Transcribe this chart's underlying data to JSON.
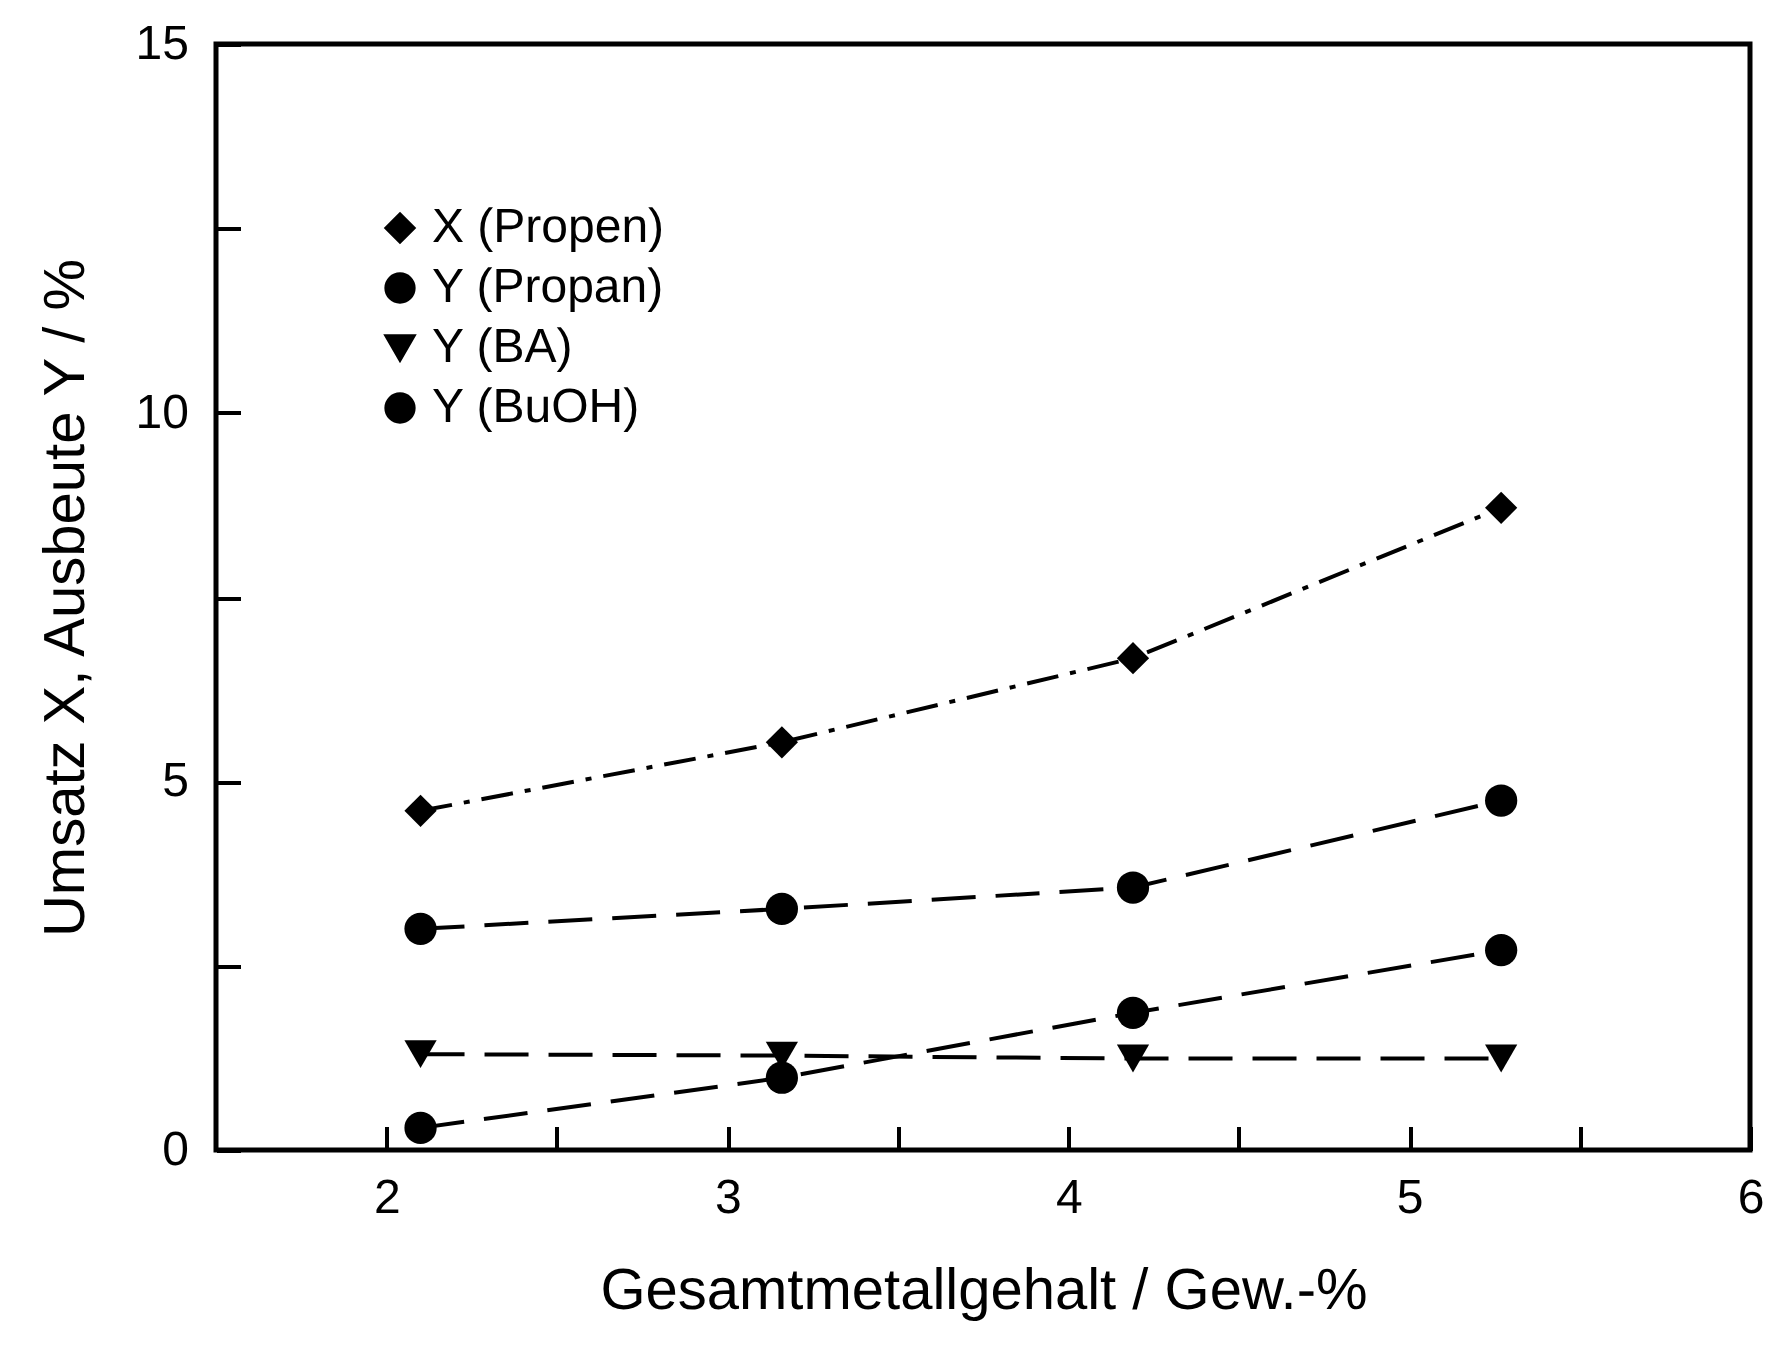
{
  "chart_data": {
    "type": "line",
    "xlabel": "Gesamtmetallgehalt  /  Gew.-%",
    "ylabel": "Umsatz X,  Ausbeute Y  /  %",
    "x": [
      2.1,
      3.16,
      4.19,
      5.27
    ],
    "series": [
      {
        "name": "X (Propen)",
        "color": "#000000",
        "marker": "diamond",
        "line_style": "dashdot",
        "values": [
          4.6,
          5.53,
          6.67,
          8.71
        ]
      },
      {
        "name": "Y (Propan)",
        "color": "#000000",
        "marker": "circle",
        "line_style": "dashed",
        "values": [
          3.0,
          3.27,
          3.56,
          4.74
        ]
      },
      {
        "name": "Y (BA)",
        "color": "#000000",
        "marker": "triangle",
        "line_style": "dashed",
        "values": [
          1.3,
          1.28,
          1.24,
          1.24
        ]
      },
      {
        "name": "Y (BuOH)",
        "color": "#000000",
        "marker": "circle",
        "line_style": "dashed",
        "values": [
          0.3,
          0.98,
          1.86,
          2.71
        ]
      }
    ],
    "xlim": [
      1.5,
      6
    ],
    "xticks": [
      2,
      {
        "value": 2.5,
        "label": null
      },
      3,
      {
        "value": 3.5,
        "label": null
      },
      4,
      {
        "value": 4.5,
        "label": null
      },
      5,
      {
        "value": 5.5,
        "label": null
      },
      6
    ],
    "ylim": [
      0,
      15
    ],
    "yticks": [
      0,
      {
        "value": 2.5,
        "label": null
      },
      5,
      {
        "value": 7.5,
        "label": null
      },
      10,
      {
        "value": 12.5,
        "label": null
      },
      15
    ],
    "grid": false,
    "legend": "top left"
  }
}
